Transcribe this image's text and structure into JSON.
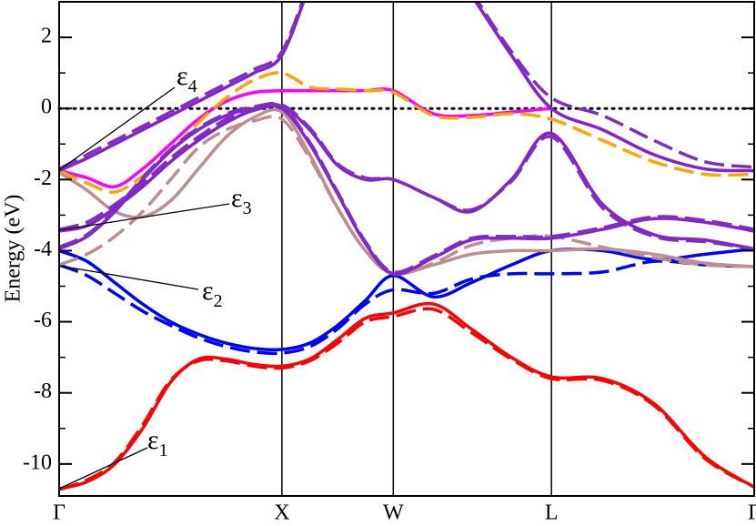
{
  "chart_data": {
    "type": "line",
    "y_label": "Energy (eV)",
    "xlim": [
      0,
      3.12
    ],
    "ylim": [
      -10.9,
      3
    ],
    "xticks": [
      {
        "value": 0,
        "label": "Γ"
      },
      {
        "value": 1,
        "label": "X"
      },
      {
        "value": 1.5,
        "label": "W"
      },
      {
        "value": 2.21,
        "label": "L"
      },
      {
        "value": 3.12,
        "label": "Γ"
      }
    ],
    "yticks": [
      -10,
      -8,
      -6,
      -4,
      -2,
      0,
      2
    ],
    "yminorticks": [
      -9,
      -7,
      -5,
      -3,
      -1,
      1
    ],
    "xgrid": true,
    "reference_line": 0,
    "annotations": [
      {
        "base": "ε",
        "sub": "4"
      },
      {
        "base": "ε",
        "sub": "3"
      },
      {
        "base": "ε",
        "sub": "2"
      },
      {
        "base": "ε",
        "sub": "1"
      }
    ],
    "x": [
      0,
      0.125,
      0.25,
      0.375,
      0.5,
      0.625,
      0.75,
      0.875,
      1,
      1.125,
      1.25,
      1.375,
      1.5,
      1.68,
      1.85,
      2.03,
      2.21,
      2.44,
      2.67,
      2.9,
      3.12
    ],
    "series": [
      {
        "color": "#ff0000",
        "style": "solid",
        "values": [
          -10.7,
          -10.5,
          -10.0,
          -9.0,
          -7.7,
          -7.05,
          -7.05,
          -7.2,
          -7.25,
          -7.05,
          -6.5,
          -5.9,
          -5.75,
          -5.5,
          -6.2,
          -7.0,
          -7.55,
          -7.6,
          -8.3,
          -9.8,
          -10.65
        ]
      },
      {
        "color": "#ff0000",
        "style": "dashed",
        "values": [
          -10.72,
          -10.45,
          -9.95,
          -8.9,
          -7.65,
          -7.1,
          -7.1,
          -7.25,
          -7.3,
          -7.1,
          -6.6,
          -6.0,
          -5.85,
          -5.65,
          -6.3,
          -7.05,
          -7.6,
          -7.65,
          -8.35,
          -9.85,
          -10.65
        ]
      },
      {
        "color": "#0000ff",
        "style": "solid",
        "values": [
          -4.0,
          -4.3,
          -4.9,
          -5.5,
          -6.0,
          -6.35,
          -6.6,
          -6.75,
          -6.78,
          -6.6,
          -6.1,
          -5.4,
          -4.7,
          -5.3,
          -4.9,
          -4.4,
          -4.0,
          -4.0,
          -4.25,
          -4.1,
          -3.95
        ]
      },
      {
        "color": "#0000ff",
        "style": "dashed",
        "values": [
          -4.4,
          -4.7,
          -5.2,
          -5.7,
          -6.1,
          -6.45,
          -6.7,
          -6.85,
          -6.88,
          -6.7,
          -6.2,
          -5.5,
          -5.1,
          -5.2,
          -4.8,
          -4.65,
          -4.65,
          -4.6,
          -4.3,
          -4.4,
          -4.45
        ]
      },
      {
        "color": "#bc8f8f",
        "style": "solid",
        "values": [
          -1.8,
          -2.3,
          -2.9,
          -3.05,
          -2.6,
          -1.7,
          -0.8,
          -0.25,
          -0.1,
          -1.3,
          -2.8,
          -4.0,
          -4.65,
          -4.4,
          -4.1,
          -4.0,
          -4.0,
          -3.95,
          -4.1,
          -4.35,
          -4.45
        ]
      },
      {
        "color": "#bc8f8f",
        "style": "dashed",
        "values": [
          -4.4,
          -4.1,
          -3.6,
          -2.9,
          -2.0,
          -1.1,
          -0.6,
          -0.35,
          -0.3,
          -1.4,
          -2.8,
          -4.0,
          -4.65,
          -4.35,
          -3.85,
          -3.65,
          -3.6,
          -3.9,
          -4.2,
          -4.4,
          -4.45
        ]
      },
      {
        "color": "#ff00ff",
        "style": "solid",
        "values": [
          -1.75,
          -1.95,
          -2.2,
          -1.7,
          -1.0,
          -0.3,
          0.2,
          0.45,
          0.5,
          0.5,
          0.5,
          0.5,
          0.5,
          -0.15,
          -0.2,
          -0.1,
          0.0,
          null,
          null,
          null,
          null
        ]
      },
      {
        "color": "#ffa500",
        "style": "dashed",
        "values": [
          -1.75,
          -2.1,
          -2.35,
          -1.9,
          -1.2,
          -0.4,
          0.3,
          0.8,
          1.0,
          0.6,
          0.55,
          0.5,
          0.45,
          -0.2,
          -0.25,
          -0.15,
          -0.3,
          -0.9,
          -1.5,
          -1.85,
          -1.85
        ]
      },
      {
        "color": "#8a1fd0",
        "style": "solid",
        "values": [
          -1.75,
          -1.4,
          -1.0,
          -0.6,
          -0.2,
          0.2,
          0.6,
          1.0,
          1.5,
          3.5,
          null,
          null,
          null,
          null,
          3.2,
          1.5,
          0.0,
          -0.6,
          -1.3,
          -1.7,
          -1.75
        ]
      },
      {
        "color": "#7a30c0",
        "style": "dashed",
        "values": [
          -1.7,
          -1.3,
          -0.9,
          -0.5,
          -0.1,
          0.3,
          0.7,
          1.1,
          1.6,
          3.6,
          null,
          null,
          null,
          null,
          3.3,
          1.6,
          0.3,
          -0.2,
          -0.9,
          -1.5,
          -1.65
        ]
      },
      {
        "color": "#8a1fd0",
        "style": "solid",
        "values": [
          -3.95,
          -3.6,
          -2.9,
          -2.0,
          -1.2,
          -0.6,
          -0.2,
          0.0,
          0.05,
          -0.6,
          -1.6,
          -2.0,
          -2.0,
          -2.5,
          -2.9,
          -2.0,
          -0.7,
          -2.7,
          -3.55,
          -3.7,
          -3.95
        ]
      },
      {
        "color": "#7a30c0",
        "style": "dashed",
        "values": [
          -3.9,
          -3.55,
          -2.85,
          -1.95,
          -1.15,
          -0.55,
          -0.15,
          0.05,
          0.1,
          -0.55,
          -1.55,
          -1.95,
          -2.0,
          -2.5,
          -2.85,
          -2.05,
          -0.8,
          -2.8,
          -3.6,
          -3.75,
          -3.95
        ]
      },
      {
        "color": "#8a1fd0",
        "style": "solid",
        "values": [
          -3.45,
          -3.3,
          -2.8,
          -2.2,
          -1.5,
          -0.9,
          -0.4,
          -0.05,
          0.0,
          -1.0,
          -2.4,
          -3.8,
          -4.65,
          -4.2,
          -3.7,
          -3.65,
          -3.65,
          -3.4,
          -3.1,
          -3.2,
          -3.45
        ]
      },
      {
        "color": "#7a30c0",
        "style": "dashed",
        "values": [
          -3.4,
          -3.2,
          -2.7,
          -2.1,
          -1.4,
          -0.8,
          -0.3,
          0.0,
          0.05,
          -0.95,
          -2.35,
          -3.75,
          -4.6,
          -4.15,
          -3.65,
          -3.6,
          -3.6,
          -3.35,
          -3.05,
          -3.15,
          -3.4
        ]
      }
    ]
  }
}
